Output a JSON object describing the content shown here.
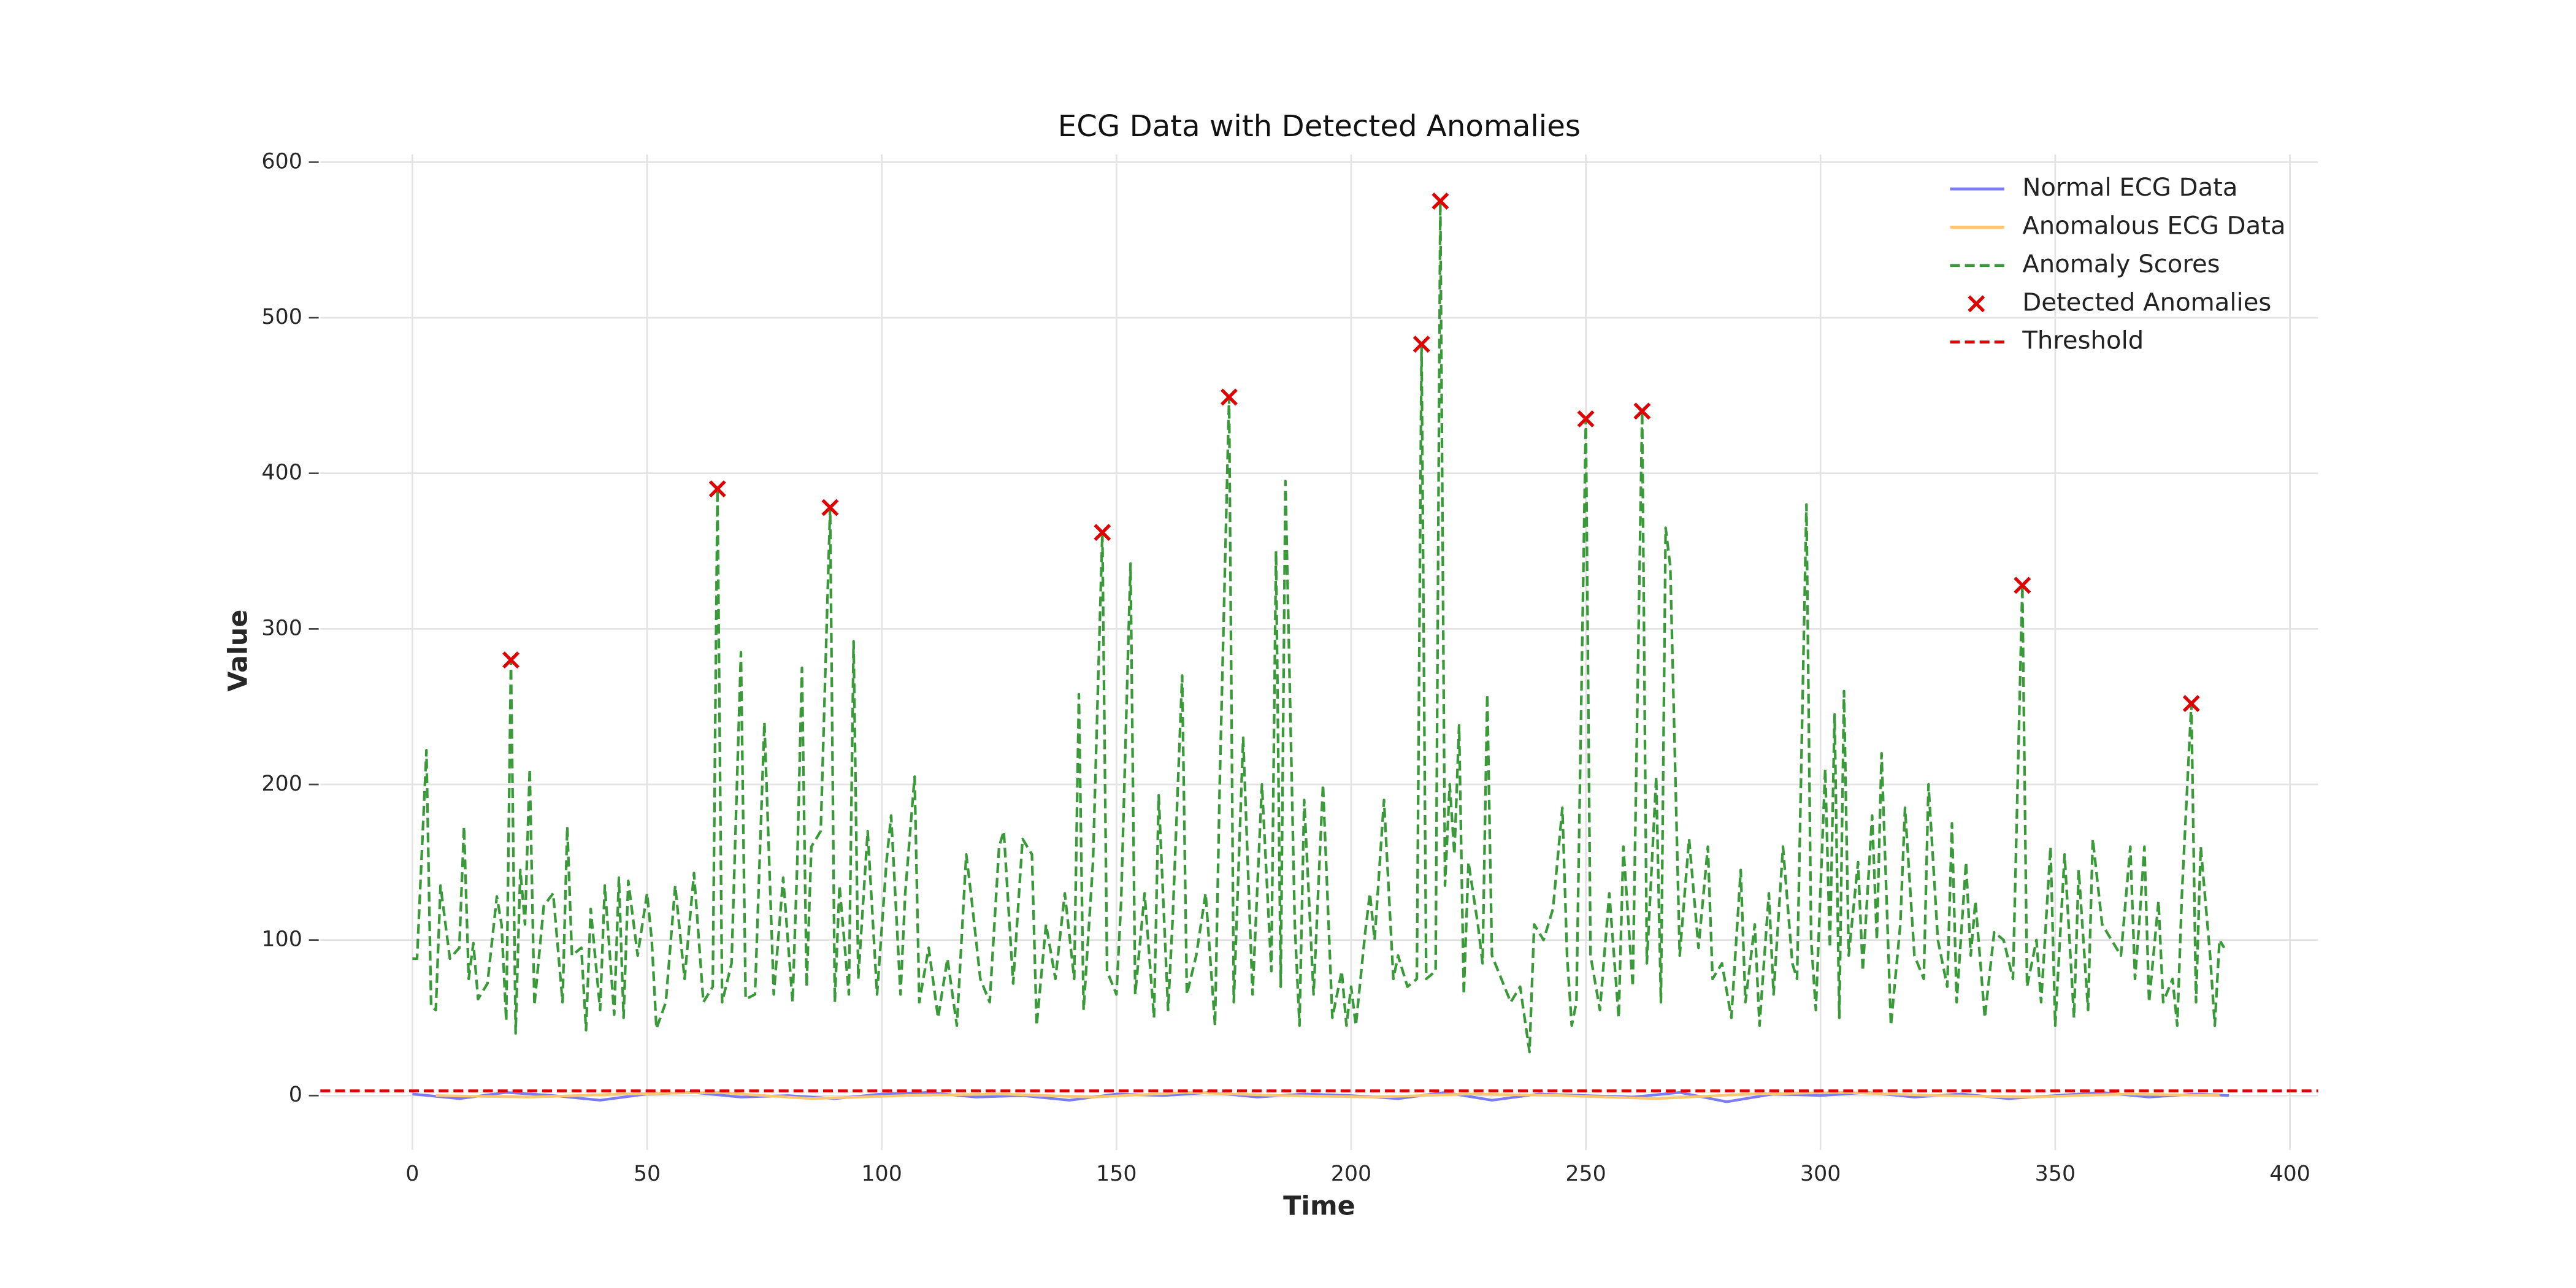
{
  "chart_data": {
    "type": "line",
    "title": "ECG Data with Detected Anomalies",
    "x_label": "Time",
    "y_label": "Value",
    "xlim": [
      -19.6,
      406
    ],
    "ylim": [
      -35,
      605
    ],
    "xticks": [
      0,
      50,
      100,
      150,
      200,
      250,
      300,
      350,
      400
    ],
    "yticks": [
      0,
      100,
      200,
      300,
      400,
      500,
      600
    ],
    "grid": true,
    "legend": "upper right",
    "series": [
      {
        "name": "Normal ECG Data",
        "kind": "line",
        "linestyle": "solid",
        "color": "#7b7bf5",
        "x": [
          0,
          10,
          20,
          30,
          40,
          50,
          60,
          70,
          80,
          90,
          100,
          110,
          120,
          130,
          140,
          150,
          160,
          170,
          180,
          190,
          200,
          210,
          220,
          230,
          240,
          250,
          260,
          270,
          280,
          290,
          300,
          310,
          320,
          330,
          340,
          350,
          360,
          370,
          380,
          387
        ],
        "values": [
          1,
          -2,
          2,
          0,
          -3,
          1,
          2,
          -1,
          0,
          -2,
          1,
          2,
          -1,
          0,
          -3,
          1,
          0,
          2,
          -1,
          1,
          0,
          -2,
          2,
          -3,
          1,
          0,
          -1,
          2,
          -4,
          1,
          0,
          2,
          -1,
          1,
          -2,
          0,
          2,
          -1,
          1,
          0
        ]
      },
      {
        "name": "Anomalous ECG Data",
        "kind": "line",
        "linestyle": "solid",
        "color": "#ffc870",
        "x": [
          5,
          25,
          45,
          65,
          85,
          105,
          125,
          145,
          165,
          185,
          205,
          225,
          245,
          265,
          285,
          305,
          325,
          345,
          365,
          385
        ],
        "values": [
          0,
          -1,
          1,
          2,
          -2,
          0,
          1,
          -1,
          2,
          0,
          -1,
          1,
          0,
          -2,
          1,
          2,
          0,
          -1,
          1,
          0
        ]
      },
      {
        "name": "Anomaly Scores",
        "kind": "line",
        "linestyle": "dashed",
        "color": "#3a9a3a",
        "x": [
          0,
          1,
          3,
          4,
          5,
          6,
          8,
          10,
          11,
          12,
          13,
          14,
          16,
          18,
          19,
          20,
          21,
          22,
          23,
          24,
          25,
          26,
          28,
          30,
          32,
          33,
          34,
          36,
          37,
          38,
          40,
          41,
          43,
          44,
          45,
          46,
          48,
          50,
          51,
          52,
          54,
          56,
          58,
          60,
          62,
          64,
          65,
          66,
          68,
          70,
          71,
          73,
          75,
          77,
          79,
          81,
          82,
          83,
          84,
          85,
          87,
          89,
          90,
          91,
          93,
          94,
          95,
          97,
          99,
          101,
          102,
          104,
          105,
          107,
          108,
          110,
          112,
          114,
          116,
          118,
          119,
          121,
          123,
          125,
          126,
          128,
          130,
          132,
          133,
          135,
          137,
          139,
          141,
          142,
          143,
          145,
          147,
          148,
          150,
          151,
          153,
          154,
          156,
          158,
          159,
          161,
          162,
          164,
          165,
          167,
          169,
          171,
          172,
          174,
          175,
          177,
          179,
          181,
          183,
          184,
          185,
          186,
          188,
          189,
          190,
          192,
          194,
          196,
          198,
          199,
          200,
          201,
          203,
          204,
          205,
          207,
          209,
          210,
          212,
          214,
          215,
          216,
          218,
          219,
          220,
          221,
          222,
          223,
          224,
          225,
          227,
          228,
          229,
          230,
          232,
          234,
          236,
          238,
          239,
          241,
          243,
          245,
          246,
          247,
          248,
          250,
          251,
          253,
          255,
          257,
          258,
          260,
          262,
          263,
          265,
          266,
          267,
          268,
          270,
          272,
          274,
          276,
          277,
          279,
          281,
          283,
          284,
          286,
          287,
          289,
          290,
          292,
          294,
          295,
          297,
          298,
          299,
          301,
          302,
          303,
          304,
          305,
          306,
          308,
          309,
          311,
          312,
          313,
          315,
          317,
          318,
          320,
          322,
          323,
          325,
          327,
          328,
          329,
          331,
          332,
          333,
          335,
          337,
          339,
          341,
          343,
          344,
          346,
          347,
          349,
          350,
          352,
          354,
          355,
          357,
          358,
          360,
          362,
          364,
          366,
          367,
          368,
          369,
          370,
          372,
          373,
          375,
          376,
          377,
          379,
          380,
          381,
          383,
          384,
          385,
          386
        ],
        "values": [
          88,
          88,
          222,
          57,
          55,
          135,
          88,
          95,
          173,
          75,
          98,
          62,
          72,
          128,
          110,
          48,
          280,
          40,
          145,
          110,
          210,
          58,
          122,
          130,
          60,
          173,
          90,
          95,
          42,
          120,
          55,
          135,
          52,
          140,
          50,
          138,
          90,
          130,
          100,
          43,
          60,
          135,
          75,
          143,
          60,
          70,
          390,
          60,
          85,
          285,
          62,
          65,
          240,
          65,
          140,
          60,
          150,
          275,
          70,
          160,
          170,
          378,
          60,
          135,
          65,
          292,
          75,
          170,
          65,
          150,
          180,
          65,
          130,
          205,
          60,
          95,
          50,
          88,
          45,
          155,
          130,
          75,
          60,
          160,
          170,
          72,
          165,
          155,
          45,
          110,
          75,
          130,
          75,
          258,
          55,
          150,
          362,
          80,
          65,
          125,
          342,
          65,
          130,
          50,
          193,
          55,
          115,
          270,
          65,
          90,
          130,
          45,
          200,
          449,
          60,
          230,
          65,
          200,
          80,
          350,
          70,
          395,
          110,
          45,
          190,
          65,
          200,
          50,
          80,
          45,
          70,
          45,
          105,
          130,
          100,
          190,
          75,
          90,
          70,
          75,
          483,
          75,
          80,
          575,
          135,
          200,
          155,
          238,
          65,
          150,
          110,
          85,
          258,
          90,
          75,
          60,
          70,
          28,
          110,
          100,
          120,
          185,
          90,
          45,
          60,
          435,
          90,
          55,
          130,
          50,
          160,
          70,
          440,
          85,
          205,
          60,
          365,
          340,
          90,
          165,
          95,
          160,
          75,
          85,
          50,
          145,
          60,
          110,
          45,
          130,
          65,
          160,
          85,
          75,
          380,
          100,
          55,
          210,
          95,
          245,
          50,
          260,
          90,
          150,
          80,
          180,
          100,
          220,
          45,
          110,
          185,
          90,
          75,
          200,
          100,
          70,
          175,
          60,
          150,
          90,
          125,
          50,
          105,
          100,
          75,
          328,
          70,
          100,
          60,
          160,
          45,
          155,
          50,
          145,
          55,
          165,
          110,
          100,
          90,
          160,
          75,
          115,
          160,
          60,
          125,
          60,
          75,
          45,
          130,
          252,
          60,
          160,
          90,
          45,
          100,
          95
        ]
      },
      {
        "name": "Detected Anomalies",
        "kind": "scatter",
        "marker": "x",
        "color": "#e00000",
        "x": [
          21,
          65,
          89,
          147,
          174,
          215,
          219,
          250,
          262,
          343,
          379
        ],
        "values": [
          280,
          390,
          378,
          362,
          449,
          483,
          575,
          435,
          440,
          328,
          252
        ]
      },
      {
        "name": "Threshold",
        "kind": "hline",
        "linestyle": "dashed",
        "color": "#e00000",
        "value": 3
      }
    ]
  }
}
